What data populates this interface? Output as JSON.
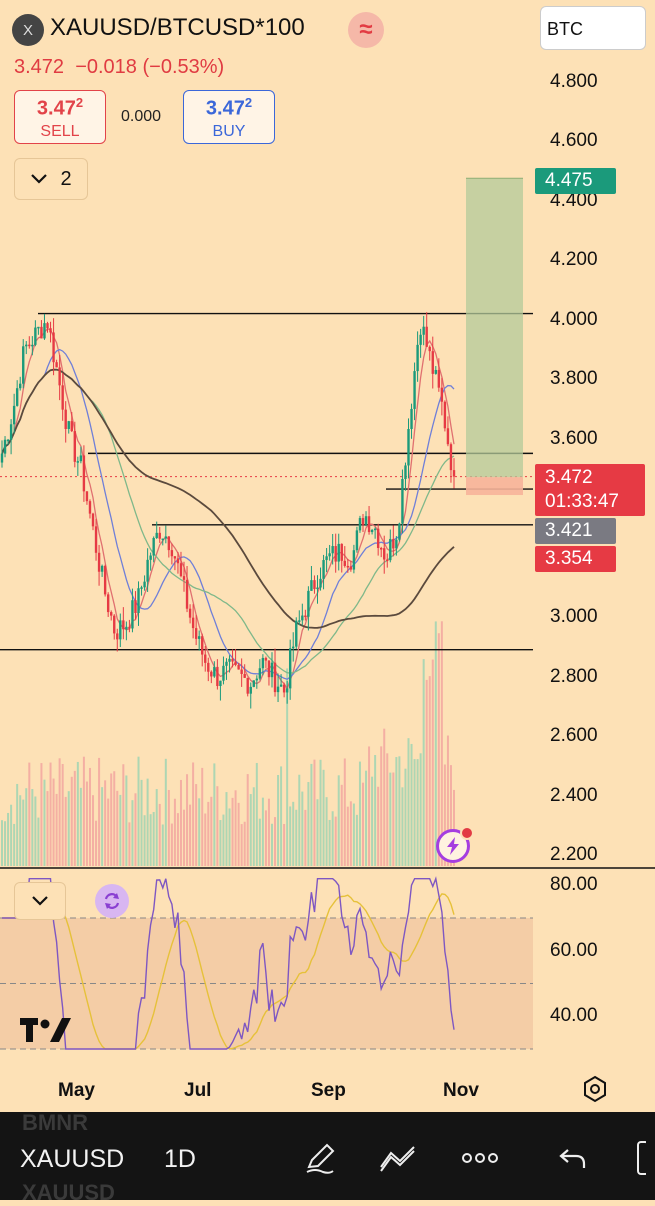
{
  "header": {
    "symbol_badge": "X",
    "title": "XAUUSD/BTCUSD*100",
    "wave_icon": "≈",
    "last": "3.472",
    "change": "−0.018",
    "change_pct": "(−0.53%)",
    "sell_price": "3.47",
    "sell_sup": "2",
    "sell_label": "SELL",
    "spread": "0.000",
    "buy_price": "3.47",
    "buy_sup": "2",
    "buy_label": "BUY",
    "currency_button": "BTC",
    "indicators_count": "2"
  },
  "price_axis": [
    "4.800",
    "4.600",
    "4.400",
    "4.200",
    "4.000",
    "3.800",
    "3.600",
    "3.000",
    "2.800",
    "2.600",
    "2.400",
    "2.200"
  ],
  "price_tags": {
    "target": {
      "value": "4.475",
      "color": "#1b9a7b"
    },
    "current": {
      "value": "3.472",
      "countdown": "01:33:47",
      "color": "#e63a44"
    },
    "ma": {
      "value": "3.421",
      "color": "#7a7a82"
    },
    "stop": {
      "value": "3.354",
      "color": "#e63a44"
    }
  },
  "rsi_axis": [
    "80.00",
    "60.00",
    "40.00"
  ],
  "time_axis": [
    "May",
    "Jul",
    "Sep",
    "Nov"
  ],
  "bottom_bar": {
    "symbol": "XAUUSD",
    "timeframe": "1D",
    "ghost_top": "BMNR",
    "ghost_bottom": "XAUUSD"
  },
  "icons": [
    "chevron-down-icon",
    "wave-icon",
    "sync-icon",
    "flash-icon",
    "settings-icon",
    "pen-icon",
    "draw-tools-icon",
    "more-icon",
    "undo-icon",
    "layout-icon"
  ],
  "colors": {
    "up": "#1b9a7b",
    "down": "#e63a44",
    "background": "#fde1b6"
  },
  "chart_data": {
    "type": "candlestick",
    "x_ticks": [
      "May",
      "Jul",
      "Sep",
      "Nov"
    ],
    "y_ticks": [
      2.2,
      2.4,
      2.6,
      2.8,
      3.0,
      3.6,
      3.8,
      4.0,
      4.2,
      4.4,
      4.6,
      4.8
    ],
    "ylim": [
      2.2,
      4.8
    ],
    "horizontal_levels": [
      4.02,
      3.55,
      3.43,
      3.31,
      2.89
    ],
    "position": {
      "entry": 3.47,
      "target": 4.475,
      "stop": 3.354
    },
    "close_path": [
      3.55,
      3.7,
      3.9,
      3.95,
      4.0,
      3.8,
      3.6,
      3.5,
      3.3,
      3.1,
      2.95,
      2.98,
      3.05,
      3.2,
      3.3,
      3.25,
      3.1,
      2.95,
      2.85,
      2.8,
      2.82,
      2.8,
      2.78,
      2.85,
      2.8,
      2.75,
      2.95,
      3.05,
      3.15,
      3.2,
      3.22,
      3.2,
      3.35,
      3.3,
      3.2,
      3.3,
      3.65,
      4.0,
      3.85,
      3.7,
      3.47
    ],
    "rsi": {
      "overbought": 70,
      "mid": 50,
      "oversold": 30,
      "ylim": [
        25,
        85
      ]
    }
  }
}
